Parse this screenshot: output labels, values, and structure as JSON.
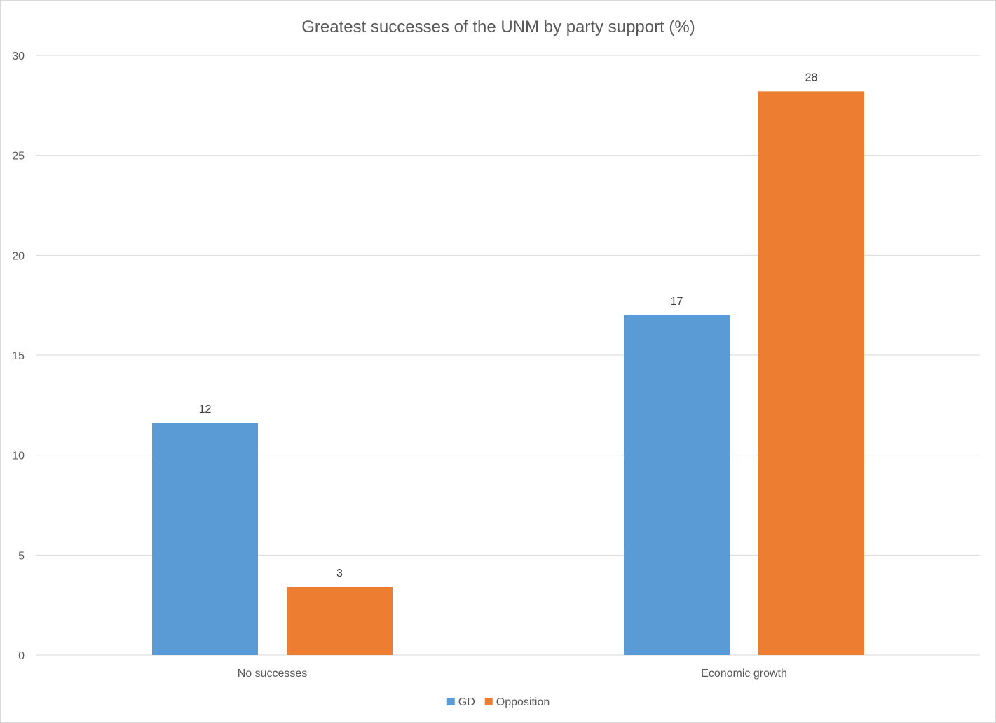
{
  "chart_data": {
    "type": "bar",
    "title": "Greatest successes of the UNM by party support (%)",
    "categories": [
      "No successes",
      "Economic growth"
    ],
    "series": [
      {
        "name": "GD",
        "color": "#5b9bd5",
        "values": [
          11.6,
          17.0
        ],
        "labels": [
          "12",
          "17"
        ]
      },
      {
        "name": "Opposition",
        "color": "#ed7d31",
        "values": [
          3.4,
          28.2
        ],
        "labels": [
          "3",
          "28"
        ]
      }
    ],
    "ylim": [
      0,
      30
    ],
    "yticks": [
      "0",
      "5",
      "10",
      "15",
      "20",
      "25",
      "30"
    ],
    "grid": true,
    "legend_position": "bottom"
  }
}
